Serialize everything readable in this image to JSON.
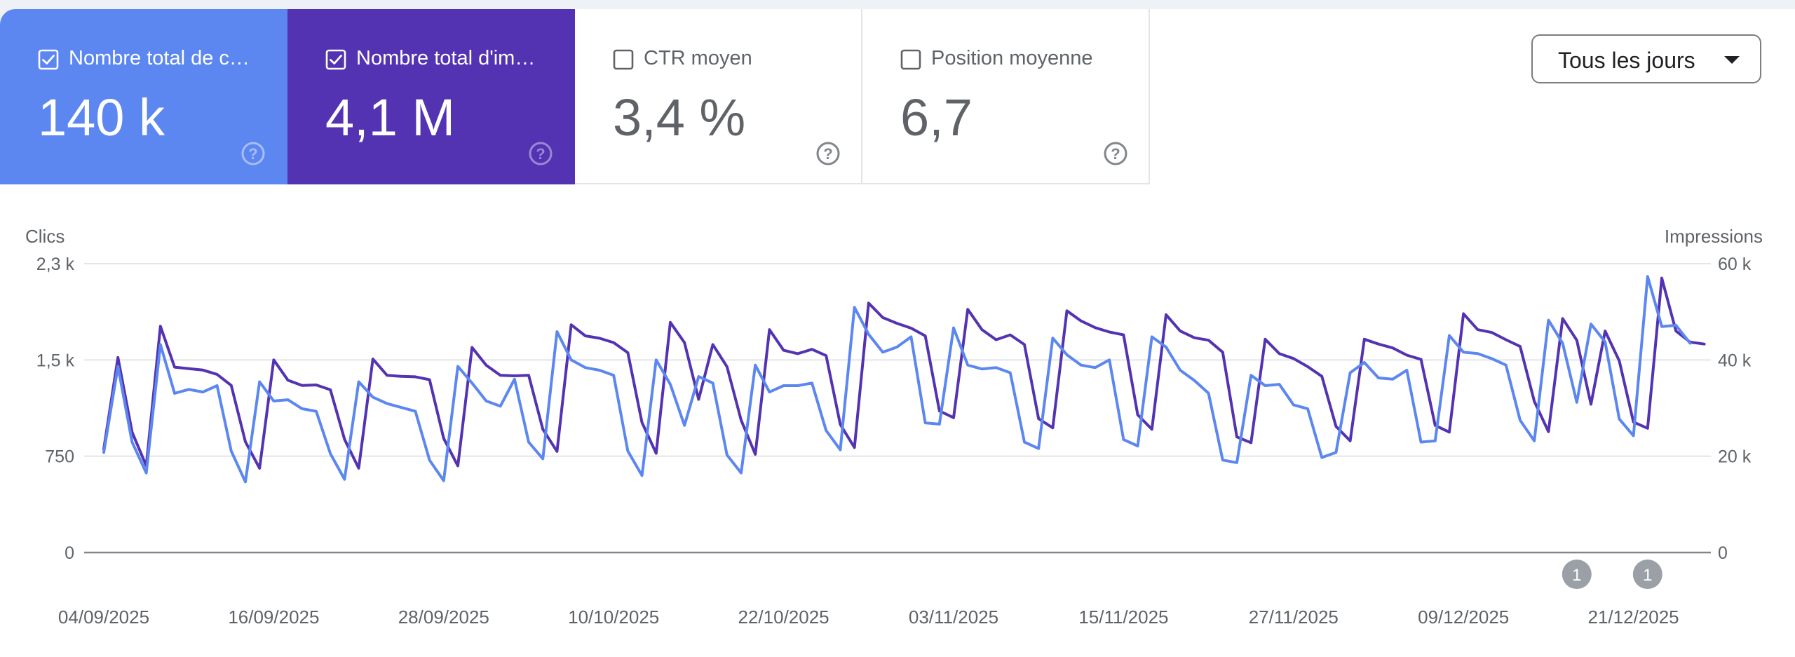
{
  "metrics": [
    {
      "label": "Nombre total de c…",
      "value": "140 k",
      "checked": true,
      "color": "#5c87f0"
    },
    {
      "label": "Nombre total d'im…",
      "value": "4,1 M",
      "checked": true,
      "color": "#5433b2"
    },
    {
      "label": "CTR moyen",
      "value": "3,4 %",
      "checked": false
    },
    {
      "label": "Position moyenne",
      "value": "6,7",
      "checked": false
    }
  ],
  "date_range": {
    "label": "Tous les jours"
  },
  "chart_data": {
    "type": "line",
    "left_axis": {
      "title": "Clics",
      "ticks": [
        "0",
        "750",
        "1,5 k",
        "2,3 k"
      ],
      "tick_values": [
        0,
        750,
        1500,
        2250
      ],
      "range": [
        0,
        2250
      ]
    },
    "right_axis": {
      "title": "Impressions",
      "ticks": [
        "0",
        "20 k",
        "40 k",
        "60 k"
      ],
      "tick_values": [
        0,
        20000,
        40000,
        60000
      ],
      "range": [
        0,
        60000
      ]
    },
    "x_ticks": [
      "04/09/2025",
      "16/09/2025",
      "28/09/2025",
      "10/10/2025",
      "22/10/2025",
      "03/11/2025",
      "15/11/2025",
      "27/11/2025",
      "09/12/2025",
      "21/12/2025"
    ],
    "x_start": "2025-09-04",
    "grid": true,
    "series": [
      {
        "axis": "left",
        "color": "#5c87f0",
        "values": [
          780,
          1450,
          860,
          620,
          1620,
          1240,
          1270,
          1250,
          1300,
          790,
          550,
          1330,
          1180,
          1190,
          1120,
          1100,
          770,
          570,
          1330,
          1210,
          1160,
          1130,
          1100,
          720,
          560,
          1450,
          1320,
          1180,
          1140,
          1350,
          860,
          730,
          1720,
          1500,
          1440,
          1420,
          1380,
          790,
          600,
          1500,
          1310,
          990,
          1370,
          1320,
          760,
          620,
          1460,
          1250,
          1300,
          1300,
          1320,
          950,
          800,
          1910,
          1700,
          1560,
          1600,
          1680,
          1010,
          1000,
          1750,
          1460,
          1430,
          1440,
          1400,
          860,
          810,
          1670,
          1540,
          1460,
          1440,
          1500,
          880,
          830,
          1680,
          1600,
          1420,
          1340,
          1240,
          720,
          700,
          1380,
          1300,
          1310,
          1150,
          1120,
          740,
          780,
          1400,
          1480,
          1360,
          1350,
          1420,
          860,
          870,
          1690,
          1560,
          1550,
          1510,
          1460,
          1030,
          870,
          1810,
          1630,
          1170,
          1780,
          1640,
          1040,
          910,
          2150,
          1760,
          1770,
          1630
        ]
      },
      {
        "axis": "right",
        "color": "#5433b2",
        "values": [
          21500,
          40500,
          25000,
          18000,
          47000,
          38500,
          38200,
          37900,
          37000,
          34700,
          23000,
          17500,
          40000,
          35800,
          34700,
          34800,
          33800,
          23500,
          17500,
          40200,
          36800,
          36600,
          36500,
          35900,
          23700,
          18000,
          42600,
          38900,
          36800,
          36700,
          36800,
          25600,
          21000,
          47300,
          45000,
          44500,
          43600,
          41500,
          27000,
          20600,
          47800,
          43600,
          31800,
          43200,
          38600,
          27500,
          20400,
          46300,
          42000,
          41300,
          42200,
          40900,
          26600,
          21800,
          51800,
          48800,
          47600,
          46600,
          45000,
          29400,
          28000,
          50500,
          46300,
          44200,
          45200,
          43200,
          27800,
          25900,
          50200,
          48100,
          46700,
          45800,
          45200,
          28600,
          25600,
          49400,
          46000,
          44600,
          44100,
          41600,
          24000,
          22800,
          44300,
          41300,
          40300,
          38600,
          36600,
          26200,
          23200,
          44300,
          43300,
          42500,
          41000,
          40100,
          26400,
          25000,
          49600,
          46300,
          45700,
          44200,
          42800,
          31400,
          25100,
          48600,
          44100,
          30800,
          46000,
          39800,
          27100,
          25800,
          57000,
          46000,
          43700,
          43300
        ]
      }
    ],
    "annotations": [
      {
        "label": "1",
        "date": "2025-12-17"
      },
      {
        "label": "1",
        "date": "2025-12-22"
      }
    ]
  }
}
